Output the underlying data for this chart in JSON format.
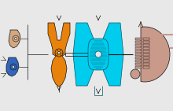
{
  "bg_color": "#e8e8e8",
  "colors": {
    "blue": "#3366bb",
    "orange": "#e8820a",
    "cyan": "#00ccee",
    "pink": "#c9998a",
    "dark": "#111111",
    "teal": "#005566",
    "gray": "#777777",
    "white": "#ffffff",
    "peach": "#d4a882"
  },
  "figsize": [
    2.2,
    1.41
  ],
  "dpi": 100
}
